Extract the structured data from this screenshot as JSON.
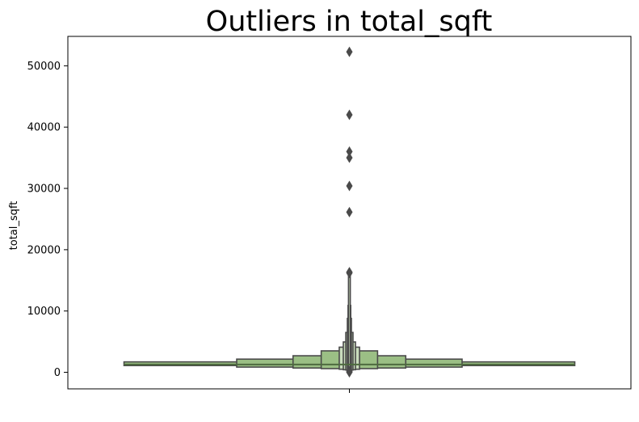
{
  "chart_data": {
    "type": "boxen",
    "title": "Outliers in total_sqft",
    "xlabel": "",
    "ylabel": "total_sqft",
    "ylim": [
      -2700,
      54800
    ],
    "yticks": [
      0,
      10000,
      20000,
      30000,
      40000,
      50000
    ],
    "ytick_labels": [
      "0",
      "10000",
      "20000",
      "30000",
      "40000",
      "50000"
    ],
    "grid": false,
    "colors": {
      "box_fill": "#9bbf85",
      "box_fill_light": "#c9dcbc",
      "edge": "#4a4a4a",
      "median": "#4e6b3f",
      "outlier": "#4a4a4a"
    },
    "boxes": [
      {
        "level": 1,
        "low": 1100,
        "high": 1700,
        "width_fraction": 1.0
      },
      {
        "level": 2,
        "low": 850,
        "high": 2150,
        "width_fraction": 0.5
      },
      {
        "level": 3,
        "low": 700,
        "high": 2700,
        "width_fraction": 0.25
      },
      {
        "level": 4,
        "low": 600,
        "high": 3500,
        "width_fraction": 0.125
      },
      {
        "level": 5,
        "low": 500,
        "high": 4100,
        "width_fraction": 0.045
      },
      {
        "level": 6,
        "low": 420,
        "high": 4950,
        "width_fraction": 0.027
      },
      {
        "level": 7,
        "low": 380,
        "high": 6500,
        "width_fraction": 0.016
      },
      {
        "level": 8,
        "low": 330,
        "high": 8800,
        "width_fraction": 0.009
      },
      {
        "level": 9,
        "low": 300,
        "high": 10900,
        "width_fraction": 0.006
      },
      {
        "level": 10,
        "low": 280,
        "high": 15800,
        "width_fraction": 0.004
      }
    ],
    "median": 1276,
    "outliers": [
      52272,
      42000,
      36000,
      35000,
      30400,
      26136,
      16335,
      16200,
      200,
      50,
      1
    ]
  }
}
